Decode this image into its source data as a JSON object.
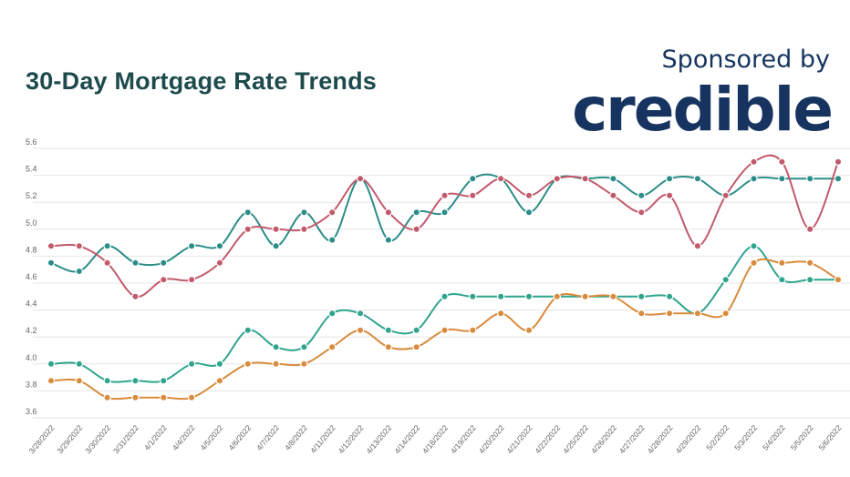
{
  "header": {
    "title": "30-Day Mortgage Rate Trends",
    "sponsor_text": "Sponsored by",
    "brand_logo": "credible"
  },
  "colors": {
    "title": "#1d4a4c",
    "brand": "#16345f",
    "series_1": "#2b8d88",
    "series_2": "#c25a6c",
    "series_3": "#2fa58e",
    "series_4": "#da8b3c",
    "grid": "#e6e6e6"
  },
  "chart_data": {
    "type": "line",
    "title": "30-Day Mortgage Rate Trends",
    "xlabel": "",
    "ylabel": "",
    "ylim": [
      3.6,
      5.6
    ],
    "yticks": [
      "5.6",
      "5.4",
      "5.2",
      "5.0",
      "4.8",
      "4.6",
      "4.4",
      "4.2",
      "4.0",
      "3.8",
      "3.6"
    ],
    "grid": true,
    "legend": "none",
    "categories": [
      "3/28/2022",
      "3/29/2022",
      "3/30/2022",
      "3/31/2022",
      "4/1/2022",
      "4/4/2022",
      "4/5/2022",
      "4/6/2022",
      "4/7/2022",
      "4/8/2022",
      "4/11/2022",
      "4/12/2022",
      "4/13/2022",
      "4/14/2022",
      "4/18/2022",
      "4/19/2022",
      "4/20/2022",
      "4/21/2022",
      "4/22/2022",
      "4/25/2022",
      "4/26/2022",
      "4/27/2022",
      "4/28/2022",
      "4/29/2022",
      "5/2/2022",
      "5/3/2022",
      "5/4/2022",
      "5/5/2022",
      "5/6/2022"
    ],
    "series": [
      {
        "color": "#2b8d88",
        "values": [
          4.75,
          4.688,
          4.875,
          4.75,
          4.75,
          4.875,
          4.875,
          5.125,
          4.875,
          5.125,
          4.92,
          5.375,
          4.92,
          5.125,
          5.125,
          5.375,
          5.375,
          5.125,
          5.375,
          5.375,
          5.375,
          5.25,
          5.375,
          5.375,
          5.25,
          5.375,
          5.375,
          5.375,
          5.375
        ]
      },
      {
        "color": "#c25a6c",
        "values": [
          4.875,
          4.875,
          4.75,
          4.5,
          4.625,
          4.625,
          4.75,
          5.0,
          5.0,
          5.0,
          5.125,
          5.375,
          5.125,
          5.0,
          5.25,
          5.25,
          5.375,
          5.25,
          5.375,
          5.375,
          5.25,
          5.125,
          5.25,
          4.875,
          5.25,
          5.5,
          5.5,
          5.0,
          5.5
        ]
      },
      {
        "color": "#2fa58e",
        "values": [
          4.0,
          4.0,
          3.875,
          3.875,
          3.875,
          4.0,
          4.0,
          4.25,
          4.125,
          4.125,
          4.375,
          4.375,
          4.25,
          4.25,
          4.5,
          4.5,
          4.5,
          4.5,
          4.5,
          4.5,
          4.5,
          4.5,
          4.5,
          4.375,
          4.625,
          4.875,
          4.625,
          4.625,
          4.625
        ]
      },
      {
        "color": "#da8b3c",
        "values": [
          3.875,
          3.875,
          3.75,
          3.75,
          3.75,
          3.75,
          3.875,
          4.0,
          4.0,
          4.0,
          4.125,
          4.25,
          4.125,
          4.125,
          4.25,
          4.25,
          4.375,
          4.25,
          4.5,
          4.5,
          4.5,
          4.375,
          4.375,
          4.375,
          4.375,
          4.75,
          4.75,
          4.75,
          4.625
        ]
      }
    ]
  }
}
